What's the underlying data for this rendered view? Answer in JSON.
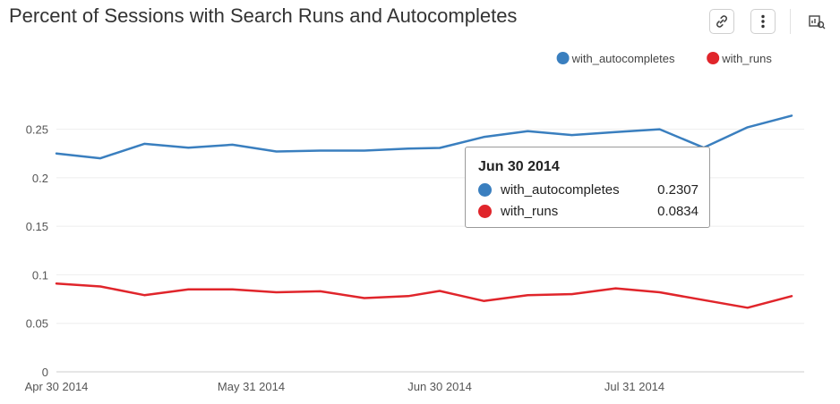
{
  "title": "Percent of Sessions with Search Runs and Autocompletes",
  "toolbar": {
    "link_icon": "link-icon",
    "more_icon": "more-vertical-icon",
    "explore_icon": "chart-explore-icon"
  },
  "colors": {
    "with_autocompletes": "#3a7fbf",
    "with_runs": "#e0252b",
    "grid": "#eeeeee",
    "axis": "#cccccc",
    "tick_text": "#555555"
  },
  "chart_data": {
    "type": "line",
    "title": "Percent of Sessions with Search Runs and Autocompletes",
    "xlabel": "",
    "ylabel": "",
    "ylim": [
      0,
      0.28
    ],
    "yticks": [
      0,
      0.05,
      0.1,
      0.15,
      0.2,
      0.25
    ],
    "ytick_labels": [
      "0",
      "0.05",
      "0.1",
      "0.15",
      "0.2",
      "0.25"
    ],
    "xlim": [
      "2014-04-30",
      "2014-08-27"
    ],
    "xticks": [
      "2014-04-30",
      "2014-05-31",
      "2014-06-30",
      "2014-07-31"
    ],
    "xtick_labels": [
      "Apr 30 2014",
      "May 31 2014",
      "Jun 30 2014",
      "Jul 31 2014"
    ],
    "grid": true,
    "legend_position": "top-right",
    "x": [
      "2014-04-30",
      "2014-05-07",
      "2014-05-14",
      "2014-05-21",
      "2014-05-28",
      "2014-06-04",
      "2014-06-11",
      "2014-06-18",
      "2014-06-25",
      "2014-06-30",
      "2014-07-07",
      "2014-07-14",
      "2014-07-21",
      "2014-07-28",
      "2014-08-04",
      "2014-08-11",
      "2014-08-18",
      "2014-08-25"
    ],
    "series": [
      {
        "name": "with_autocompletes",
        "color": "#3a7fbf",
        "values": [
          0.225,
          0.22,
          0.235,
          0.231,
          0.234,
          0.227,
          0.228,
          0.228,
          0.23,
          0.2307,
          0.242,
          0.248,
          0.244,
          0.247,
          0.25,
          0.231,
          0.252,
          0.264
        ]
      },
      {
        "name": "with_runs",
        "color": "#e0252b",
        "values": [
          0.091,
          0.088,
          0.079,
          0.085,
          0.085,
          0.082,
          0.083,
          0.076,
          0.078,
          0.0834,
          0.073,
          0.079,
          0.08,
          0.086,
          0.082,
          0.074,
          0.066,
          0.078
        ]
      }
    ],
    "tooltip": {
      "date": "Jun 30 2014",
      "rows": [
        {
          "name": "with_autocompletes",
          "value": "0.2307",
          "color": "#3a7fbf"
        },
        {
          "name": "with_runs",
          "value": "0.0834",
          "color": "#e0252b"
        }
      ]
    }
  }
}
